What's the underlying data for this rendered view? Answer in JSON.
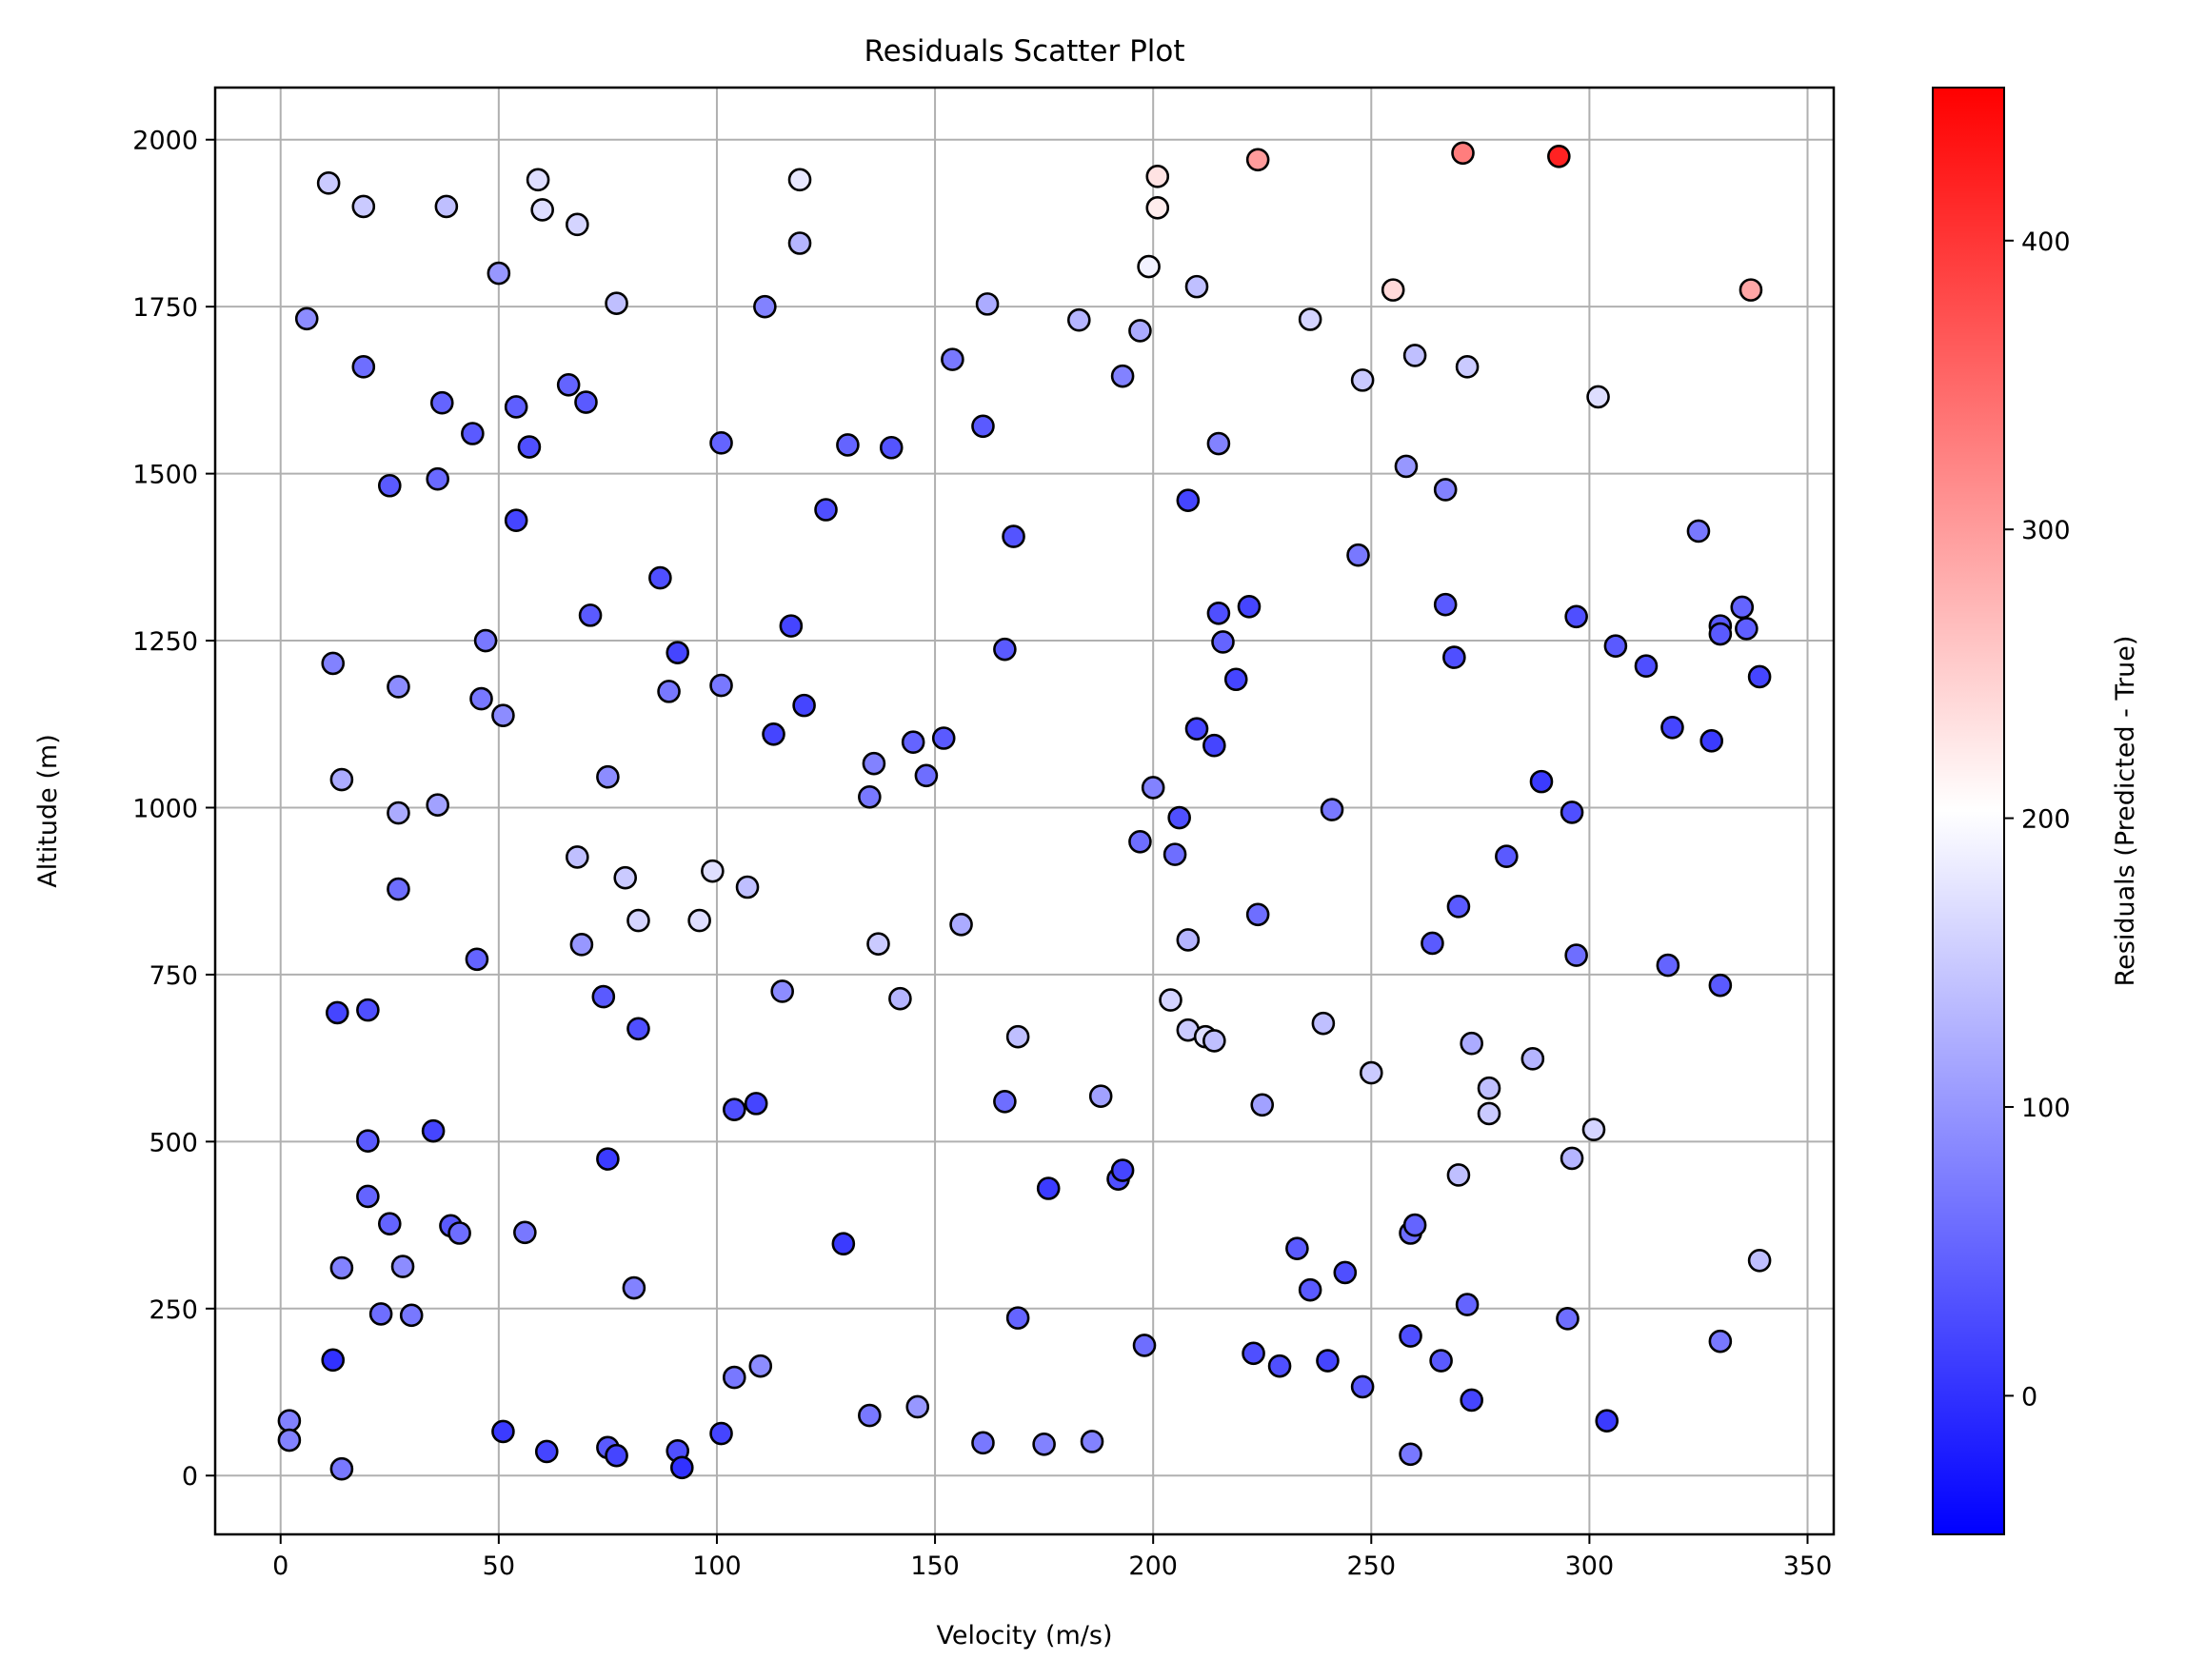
{
  "chart_data": {
    "type": "scatter",
    "title": "Residuals Scatter Plot",
    "xlabel": "Velocity (m/s)",
    "ylabel": "Altitude (m)",
    "xlim": [
      -15,
      356
    ],
    "ylim": [
      -88,
      2078
    ],
    "xticks": [
      0,
      50,
      100,
      150,
      200,
      250,
      300,
      350
    ],
    "yticks": [
      0,
      250,
      500,
      750,
      1000,
      1250,
      1500,
      1750,
      2000
    ],
    "grid": true,
    "colorbar": {
      "label": "Residuals (Predicted - True)",
      "range": [
        -48,
        453
      ],
      "ticks": [
        0,
        100,
        200,
        300,
        400
      ],
      "cmap": [
        "#0000ff",
        "#ffffff",
        "#ff0000"
      ]
    },
    "points": [
      [
        11,
        1935,
        150
      ],
      [
        19,
        1900,
        150
      ],
      [
        38,
        1900,
        140
      ],
      [
        59,
        1940,
        170
      ],
      [
        60,
        1895,
        170
      ],
      [
        68,
        1873,
        160
      ],
      [
        50,
        1800,
        100
      ],
      [
        6,
        1732,
        90
      ],
      [
        77,
        1755,
        140
      ],
      [
        119,
        1940,
        180
      ],
      [
        119,
        1845,
        130
      ],
      [
        111,
        1750,
        80
      ],
      [
        19,
        1660,
        60
      ],
      [
        66,
        1633,
        50
      ],
      [
        70,
        1607,
        40
      ],
      [
        37,
        1606,
        50
      ],
      [
        54,
        1600,
        45
      ],
      [
        44,
        1560,
        40
      ],
      [
        57,
        1540,
        30
      ],
      [
        25,
        1482,
        40
      ],
      [
        36,
        1492,
        55
      ],
      [
        54,
        1430,
        20
      ],
      [
        101,
        1546,
        50
      ],
      [
        130,
        1543,
        50
      ],
      [
        140,
        1539,
        35
      ],
      [
        125,
        1446,
        30
      ],
      [
        168,
        1406,
        35
      ],
      [
        161,
        1571,
        40
      ],
      [
        154,
        1671,
        70
      ],
      [
        162,
        1754,
        120
      ],
      [
        183,
        1730,
        130
      ],
      [
        197,
        1714,
        120
      ],
      [
        193,
        1646,
        80
      ],
      [
        199,
        1810,
        190
      ],
      [
        201,
        1945,
        230
      ],
      [
        201,
        1898,
        220
      ],
      [
        210,
        1780,
        140
      ],
      [
        224,
        1970,
        300
      ],
      [
        271,
        1980,
        330
      ],
      [
        293,
        1975,
        420
      ],
      [
        236,
        1731,
        160
      ],
      [
        255,
        1775,
        240
      ],
      [
        337,
        1775,
        290
      ],
      [
        260,
        1677,
        140
      ],
      [
        248,
        1640,
        150
      ],
      [
        272,
        1660,
        150
      ],
      [
        302,
        1615,
        170
      ],
      [
        215,
        1545,
        80
      ],
      [
        208,
        1460,
        20
      ],
      [
        258,
        1511,
        100
      ],
      [
        267,
        1476,
        80
      ],
      [
        247,
        1378,
        70
      ],
      [
        325,
        1414,
        70
      ],
      [
        87,
        1344,
        30
      ],
      [
        71,
        1288,
        40
      ],
      [
        47,
        1250,
        70
      ],
      [
        12,
        1216,
        80
      ],
      [
        117,
        1272,
        20
      ],
      [
        91,
        1232,
        20
      ],
      [
        89,
        1174,
        70
      ],
      [
        101,
        1183,
        70
      ],
      [
        120,
        1153,
        20
      ],
      [
        113,
        1110,
        20
      ],
      [
        46,
        1163,
        70
      ],
      [
        51,
        1138,
        90
      ],
      [
        27,
        1181,
        90
      ],
      [
        14,
        1042,
        120
      ],
      [
        27,
        992,
        120
      ],
      [
        36,
        1004,
        110
      ],
      [
        75,
        1046,
        90
      ],
      [
        136,
        1066,
        80
      ],
      [
        135,
        1016,
        70
      ],
      [
        145,
        1098,
        50
      ],
      [
        148,
        1048,
        60
      ],
      [
        152,
        1104,
        40
      ],
      [
        166,
        1237,
        40
      ],
      [
        215,
        1291,
        30
      ],
      [
        222,
        1301,
        20
      ],
      [
        216,
        1248,
        50
      ],
      [
        219,
        1192,
        20
      ],
      [
        210,
        1118,
        20
      ],
      [
        214,
        1093,
        20
      ],
      [
        200,
        1030,
        80
      ],
      [
        206,
        985,
        30
      ],
      [
        205,
        930,
        60
      ],
      [
        197,
        949,
        60
      ],
      [
        241,
        997,
        70
      ],
      [
        267,
        1304,
        40
      ],
      [
        269,
        1225,
        30
      ],
      [
        297,
        1286,
        30
      ],
      [
        306,
        1242,
        40
      ],
      [
        313,
        1212,
        30
      ],
      [
        330,
        1272,
        40
      ],
      [
        330,
        1260,
        40
      ],
      [
        335,
        1300,
        50
      ],
      [
        336,
        1268,
        45
      ],
      [
        339,
        1196,
        20
      ],
      [
        319,
        1120,
        20
      ],
      [
        328,
        1100,
        10
      ],
      [
        289,
        1039,
        10
      ],
      [
        296,
        993,
        30
      ],
      [
        68,
        926,
        140
      ],
      [
        79,
        895,
        150
      ],
      [
        82,
        831,
        160
      ],
      [
        99,
        905,
        170
      ],
      [
        96,
        831,
        170
      ],
      [
        107,
        881,
        140
      ],
      [
        69,
        795,
        100
      ],
      [
        137,
        796,
        150
      ],
      [
        156,
        825,
        120
      ],
      [
        45,
        773,
        50
      ],
      [
        27,
        878,
        60
      ],
      [
        13,
        693,
        20
      ],
      [
        20,
        697,
        30
      ],
      [
        74,
        717,
        40
      ],
      [
        82,
        669,
        30
      ],
      [
        115,
        725,
        90
      ],
      [
        142,
        714,
        130
      ],
      [
        169,
        657,
        140
      ],
      [
        188,
        568,
        110
      ],
      [
        166,
        560,
        60
      ],
      [
        204,
        712,
        160
      ],
      [
        208,
        667,
        150
      ],
      [
        212,
        657,
        170
      ],
      [
        214,
        651,
        140
      ],
      [
        208,
        802,
        130
      ],
      [
        224,
        840,
        60
      ],
      [
        239,
        677,
        140
      ],
      [
        250,
        603,
        150
      ],
      [
        264,
        797,
        40
      ],
      [
        270,
        852,
        40
      ],
      [
        281,
        927,
        40
      ],
      [
        297,
        779,
        60
      ],
      [
        318,
        764,
        50
      ],
      [
        330,
        734,
        40
      ],
      [
        287,
        624,
        130
      ],
      [
        273,
        647,
        120
      ],
      [
        277,
        580,
        140
      ],
      [
        277,
        542,
        150
      ],
      [
        225,
        555,
        110
      ],
      [
        270,
        450,
        140
      ],
      [
        296,
        475,
        130
      ],
      [
        301,
        518,
        160
      ],
      [
        35,
        516,
        20
      ],
      [
        20,
        501,
        40
      ],
      [
        75,
        474,
        10
      ],
      [
        104,
        548,
        30
      ],
      [
        109,
        557,
        20
      ],
      [
        192,
        444,
        30
      ],
      [
        193,
        457,
        20
      ],
      [
        176,
        430,
        10
      ],
      [
        20,
        418,
        50
      ],
      [
        25,
        377,
        50
      ],
      [
        39,
        374,
        40
      ],
      [
        41,
        363,
        60
      ],
      [
        56,
        364,
        70
      ],
      [
        14,
        311,
        80
      ],
      [
        28,
        313,
        90
      ],
      [
        23,
        242,
        60
      ],
      [
        30,
        240,
        70
      ],
      [
        81,
        281,
        80
      ],
      [
        129,
        347,
        10
      ],
      [
        169,
        236,
        50
      ],
      [
        233,
        340,
        40
      ],
      [
        236,
        278,
        40
      ],
      [
        244,
        304,
        30
      ],
      [
        259,
        363,
        60
      ],
      [
        260,
        375,
        50
      ],
      [
        272,
        256,
        50
      ],
      [
        295,
        235,
        60
      ],
      [
        339,
        322,
        140
      ],
      [
        12,
        173,
        0
      ],
      [
        2,
        82,
        80
      ],
      [
        2,
        53,
        80
      ],
      [
        14,
        10,
        70
      ],
      [
        51,
        66,
        10
      ],
      [
        61,
        36,
        20
      ],
      [
        75,
        42,
        40
      ],
      [
        77,
        30,
        20
      ],
      [
        91,
        37,
        30
      ],
      [
        92,
        12,
        0
      ],
      [
        101,
        63,
        20
      ],
      [
        104,
        147,
        70
      ],
      [
        110,
        164,
        90
      ],
      [
        135,
        90,
        70
      ],
      [
        146,
        103,
        100
      ],
      [
        161,
        49,
        70
      ],
      [
        175,
        47,
        80
      ],
      [
        186,
        51,
        80
      ],
      [
        198,
        195,
        60
      ],
      [
        223,
        183,
        30
      ],
      [
        229,
        164,
        30
      ],
      [
        240,
        172,
        20
      ],
      [
        248,
        133,
        40
      ],
      [
        259,
        209,
        30
      ],
      [
        266,
        172,
        40
      ],
      [
        273,
        113,
        20
      ],
      [
        259,
        32,
        70
      ],
      [
        304,
        82,
        10
      ],
      [
        330,
        201,
        70
      ]
    ]
  }
}
